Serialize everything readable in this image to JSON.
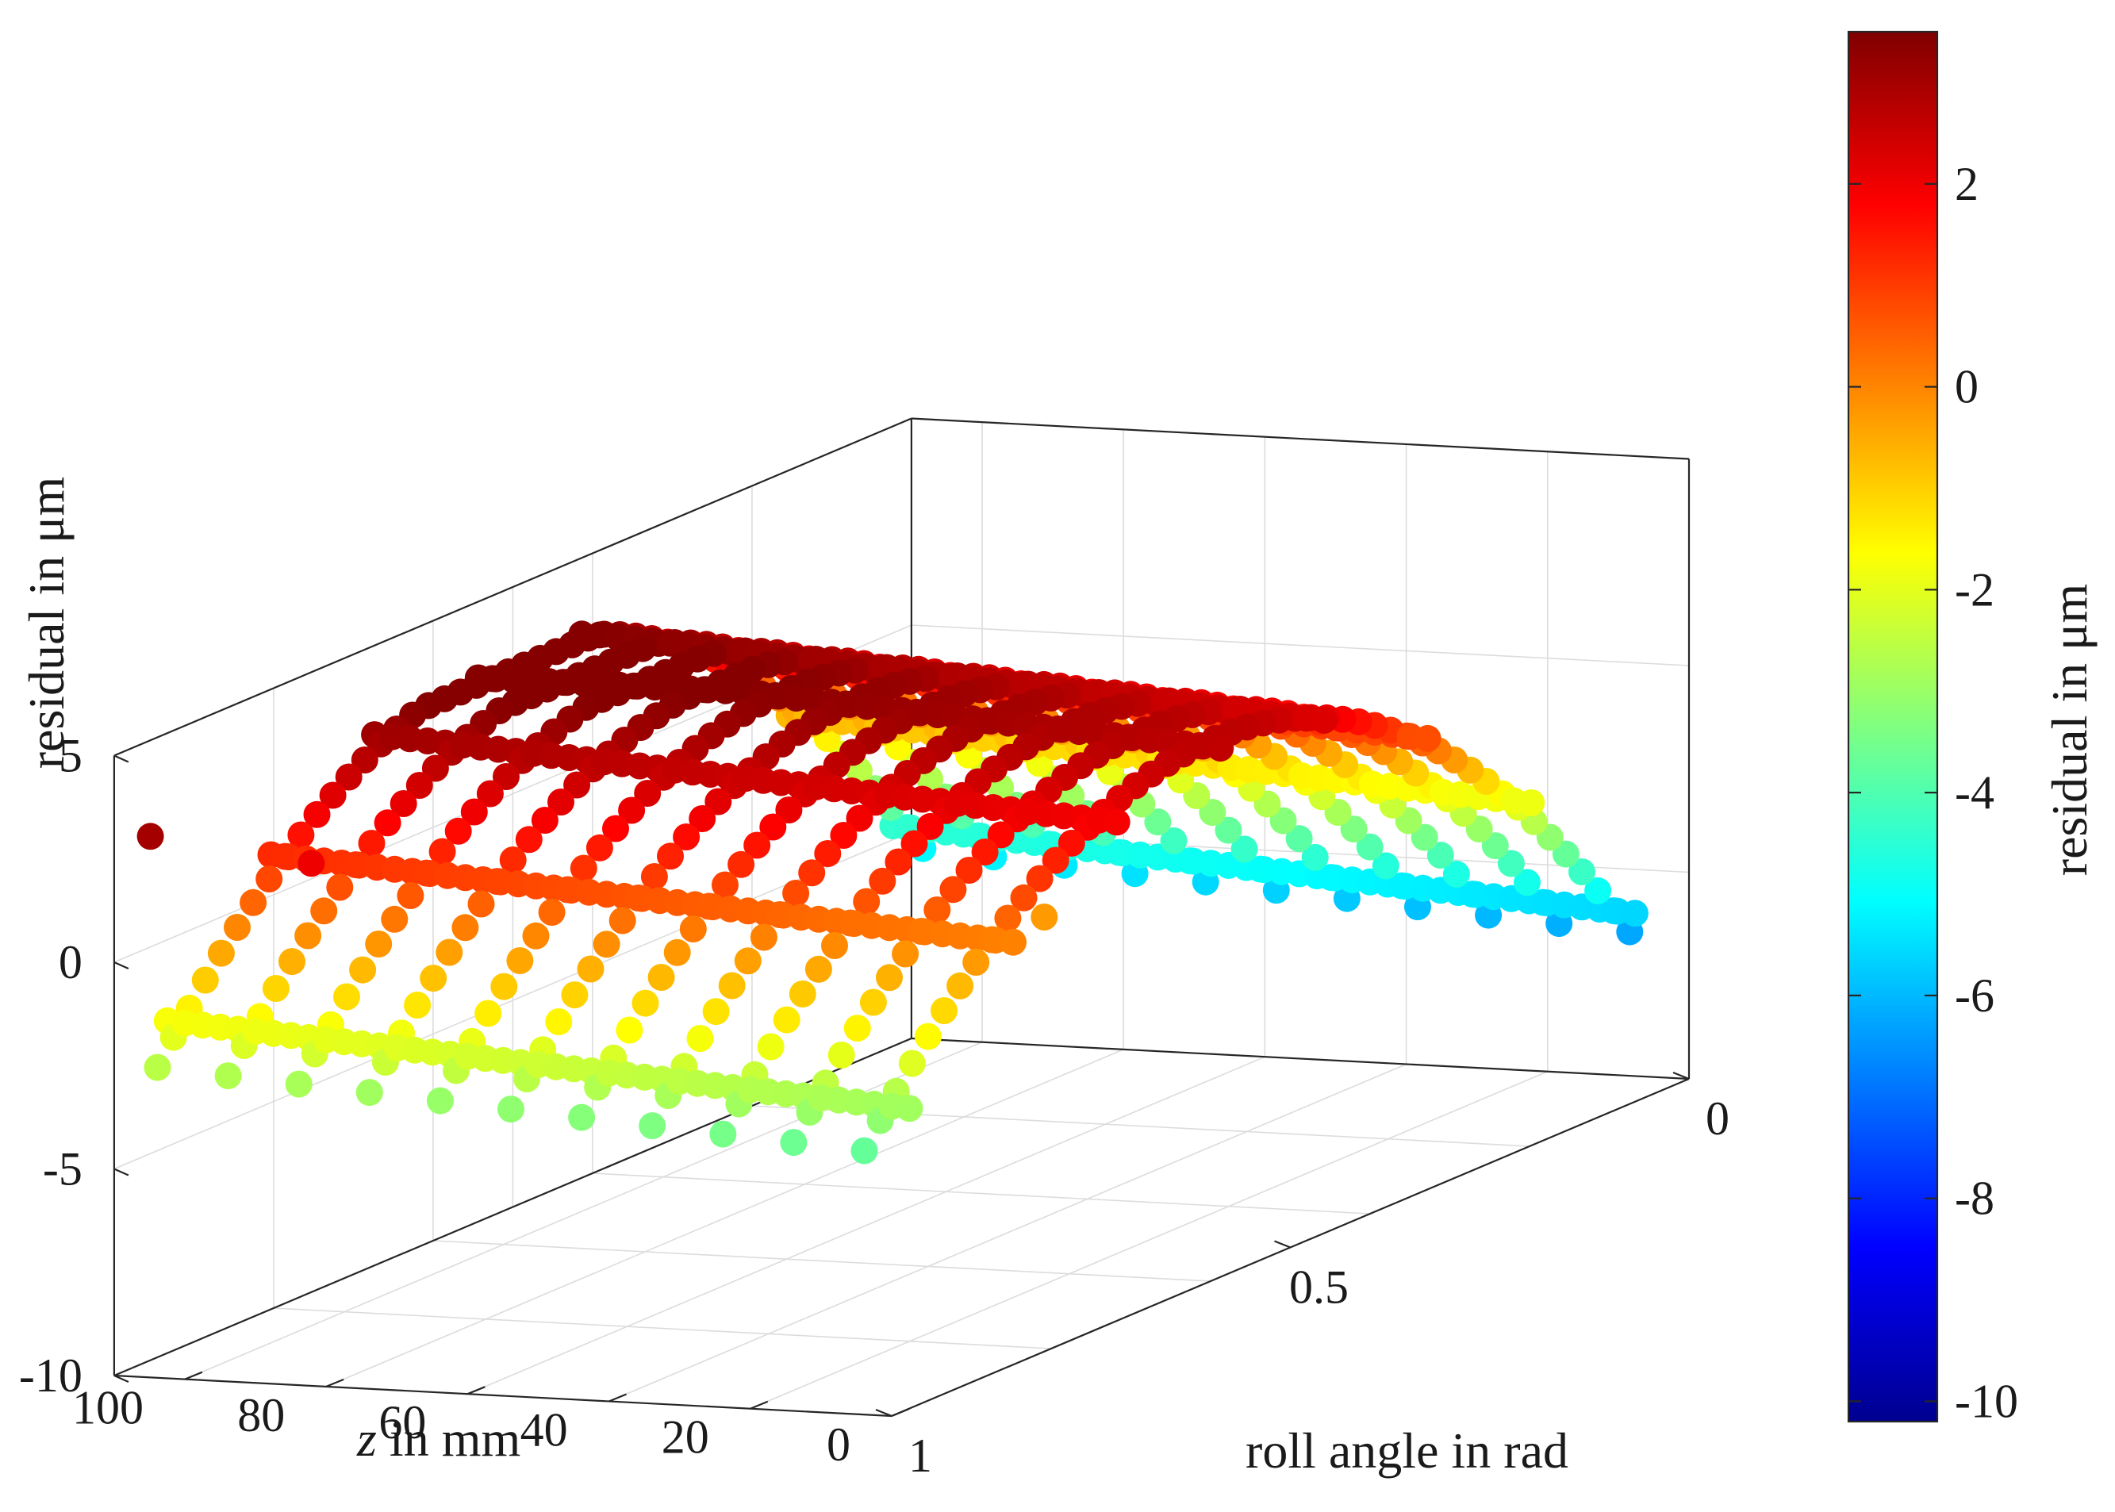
{
  "chart_data": {
    "type": "scatter3d",
    "colormap": "jet",
    "x_axis": {
      "label_italic": "z",
      "label_rest": " in mm",
      "ticks": [
        "0",
        "20",
        "40",
        "60",
        "80",
        "100"
      ],
      "range": [
        0,
        110
      ]
    },
    "y_axis": {
      "label": "roll angle in rad",
      "ticks": [
        "1",
        "0.5",
        "0"
      ],
      "range": [
        0,
        1
      ]
    },
    "z_axis": {
      "label": "residual in μm",
      "ticks": [
        "5",
        "0",
        "-5",
        "-10"
      ],
      "range": [
        -10,
        5
      ]
    },
    "colorbar": {
      "label": "residual in μm",
      "ticks": [
        "2",
        "0",
        "-2",
        "-4",
        "-6",
        "-8",
        "-10"
      ],
      "range": [
        -10.2,
        3.5
      ]
    },
    "surface_model": {
      "peak": 3.3,
      "peak_roll": 0.55,
      "roll_curvature": 33,
      "z_slope": -0.045
    },
    "lines_constant_z": [
      5,
      15,
      25,
      35,
      45,
      55,
      65,
      75,
      85,
      95,
      105
    ],
    "lines_constant_roll": [
      0.05,
      0.18,
      0.31,
      0.44,
      0.57,
      0.7,
      0.83,
      0.96
    ],
    "outliers": [
      {
        "z": 106,
        "roll": 0.99,
        "residual": 3.0
      },
      {
        "z": 90,
        "roll": 0.93,
        "residual": 2.0
      },
      {
        "z": 10,
        "roll": 0.72,
        "residual": -0.3
      }
    ]
  }
}
